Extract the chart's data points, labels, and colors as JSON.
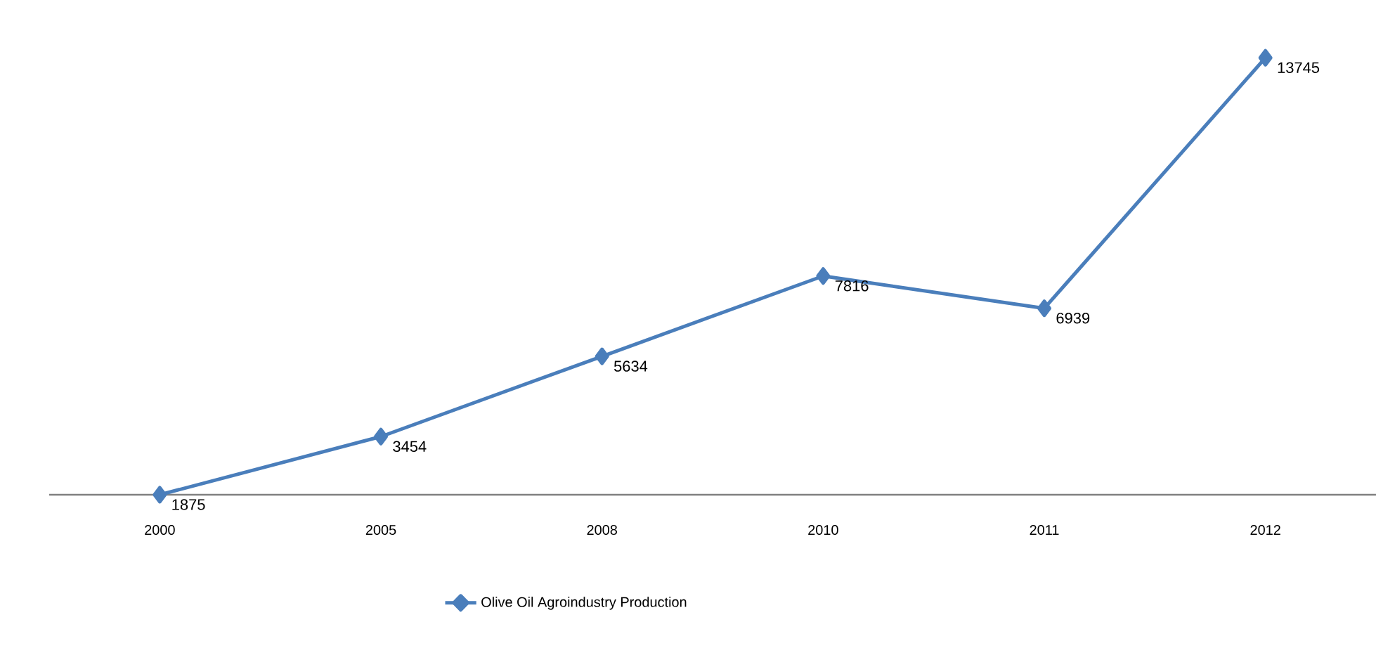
{
  "chart_data": {
    "type": "line",
    "categories": [
      "2000",
      "2005",
      "2008",
      "2010",
      "2011",
      "2012"
    ],
    "series": [
      {
        "name": "Olive Oil Agroindustry Production",
        "color": "#4a7ebb",
        "values": [
          1875,
          3454,
          5634,
          7816,
          6939,
          13745
        ]
      }
    ],
    "marker": "diamond",
    "data_labels": true,
    "legend": "bottom"
  }
}
